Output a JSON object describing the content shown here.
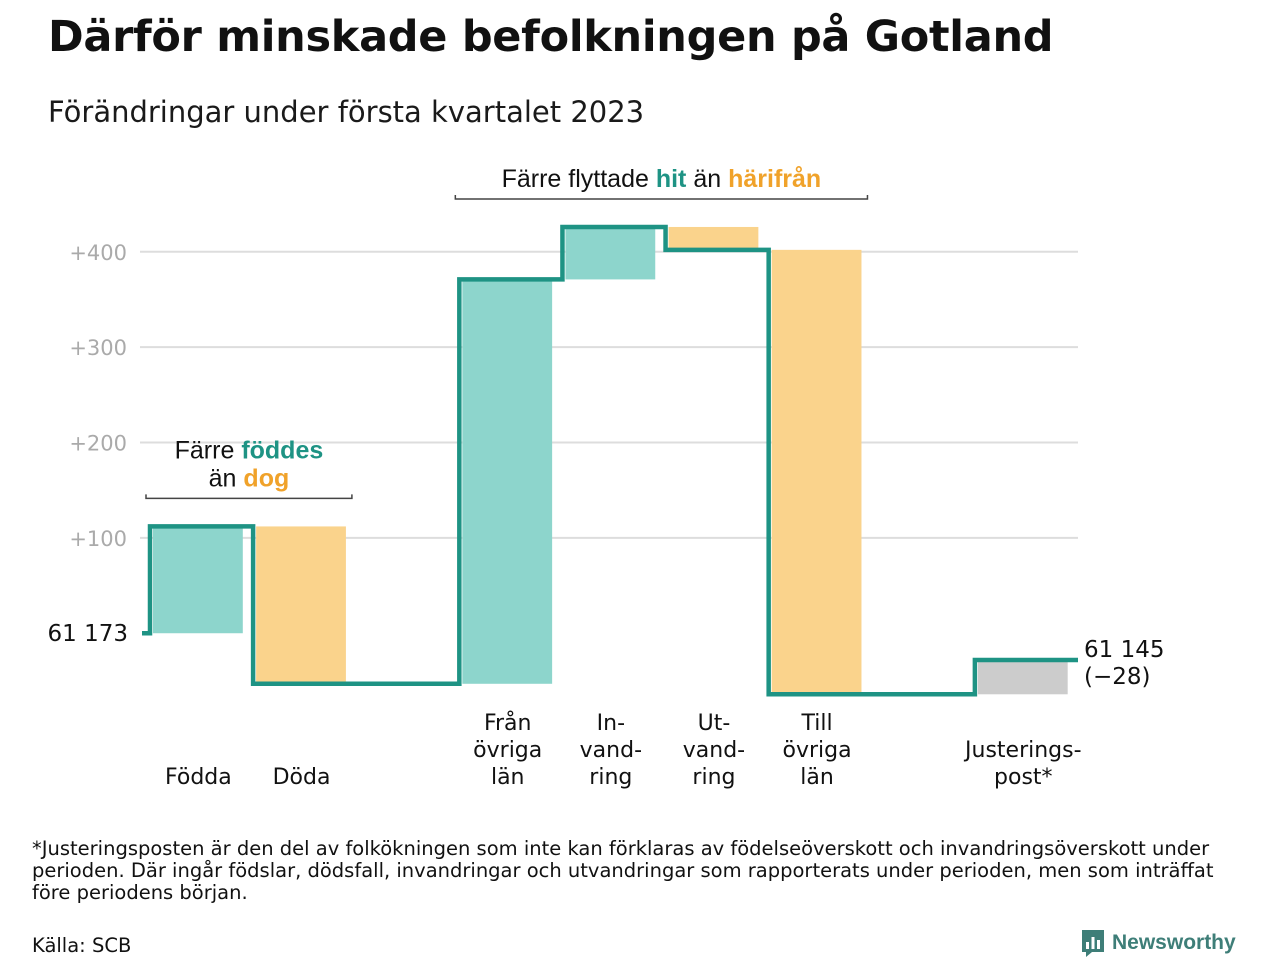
{
  "title": "Därför minskade befolkningen på Gotland",
  "subtitle": "Förändringar under första kvartalet 2023",
  "footnote": "*Justeringsposten är den del av folkökningen som inte kan förklaras av födelseöverskott och invandringsöverskott under perioden. Där ingår födslar, dödsfall, invandringar och utvandringar som rapporterats under perioden, men som inträffat före periodens början.",
  "source": "Källa: SCB",
  "brand": {
    "name": "Newsworthy",
    "icon": "bar-chart-speech-bubble-icon"
  },
  "colors": {
    "increase": "#8dd5cc",
    "decrease": "#fad38c",
    "adjustment": "#cccccc",
    "line": "#1e9384",
    "grid": "#dddddd",
    "tick": "#aaaaaa",
    "teal_text": "#1e9384",
    "orange_text": "#f0a22a"
  },
  "chart_data": {
    "type": "waterfall",
    "start_value": 61173,
    "start_label": "61 173",
    "end_label": "61 145",
    "end_change_label": "(−28)",
    "yticks": [
      100,
      200,
      300,
      400
    ],
    "ytick_labels": [
      "+100",
      "+200",
      "+300",
      "+400"
    ],
    "ylim": [
      -70,
      470
    ],
    "grid": true,
    "steps": [
      {
        "label": [
          "Födda"
        ],
        "value": 112,
        "kind": "increase"
      },
      {
        "label": [
          "Döda"
        ],
        "value": -165,
        "kind": "decrease"
      },
      {
        "label": [],
        "value": 0,
        "kind": "gap"
      },
      {
        "label": [
          "Från",
          "övriga",
          "län"
        ],
        "value": 424,
        "kind": "increase"
      },
      {
        "label": [
          "In-",
          "vand-",
          "ring"
        ],
        "value": 55,
        "kind": "increase"
      },
      {
        "label": [
          "Ut-",
          "vand-",
          "ring"
        ],
        "value": -24,
        "kind": "decrease"
      },
      {
        "label": [
          "Till",
          "övriga",
          "län"
        ],
        "value": -466,
        "kind": "decrease"
      },
      {
        "label": [],
        "value": 0,
        "kind": "gap"
      },
      {
        "label": [
          "Justerings-",
          "post*"
        ],
        "value": 36,
        "kind": "adjustment"
      }
    ],
    "annotations": [
      {
        "from_step": 0,
        "to_step": 1,
        "lines": [
          [
            {
              "text": "Färre ",
              "color": "default"
            },
            {
              "text": "föddes",
              "color": "teal"
            }
          ],
          [
            {
              "text": "än ",
              "color": "default"
            },
            {
              "text": "dog",
              "color": "orange"
            }
          ]
        ]
      },
      {
        "from_step": 3,
        "to_step": 6,
        "lines": [
          [
            {
              "text": "Färre flyttade ",
              "color": "default"
            },
            {
              "text": "hit",
              "color": "teal"
            },
            {
              "text": " än ",
              "color": "default"
            },
            {
              "text": "härifrån",
              "color": "orange"
            }
          ]
        ]
      }
    ]
  }
}
